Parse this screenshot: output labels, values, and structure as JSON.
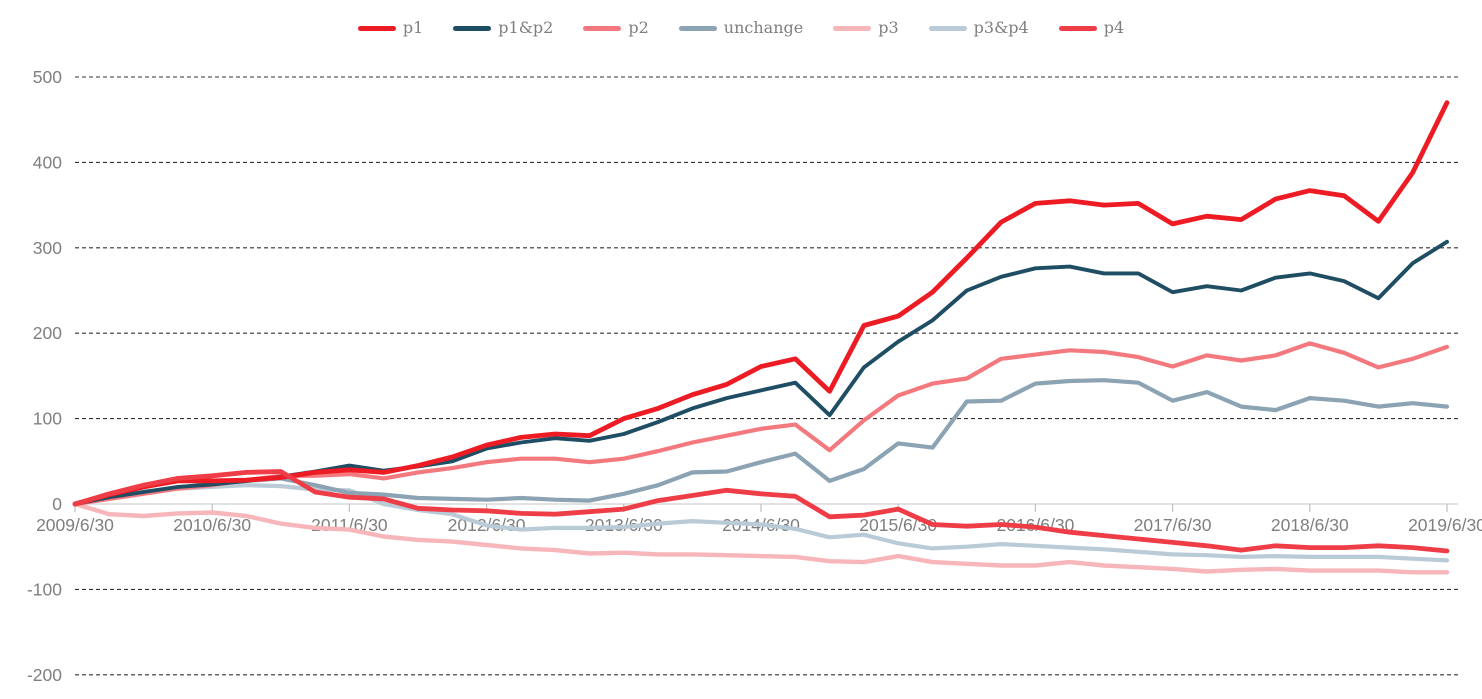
{
  "page": {
    "background": "#ffffff",
    "text_color": "#7f7f7f"
  },
  "legend": {
    "position": "top-center",
    "items": [
      "p1",
      "p1&p2",
      "p2",
      "unchange",
      "p3",
      "p3&p4",
      "p4"
    ]
  },
  "axis": {
    "y_tick_labels": [
      "500",
      "400",
      "300",
      "200",
      "100",
      "0",
      "-100",
      "-200"
    ],
    "x_tick_labels": [
      "2009/6/30",
      "2010/6/30",
      "2011/6/30",
      "2012/6/30",
      "2013/6/30",
      "2014/6/30",
      "2015/6/30",
      "2016/6/30",
      "2017/6/30",
      "2018/6/30",
      "2019/6/30"
    ]
  },
  "chart_data": {
    "type": "line",
    "title": "",
    "xlabel": "",
    "ylabel": "",
    "ylim": [
      -200,
      500
    ],
    "yticks": [
      500,
      400,
      300,
      200,
      100,
      0,
      -100,
      -200
    ],
    "grid": "horizontal-dashed",
    "grid_color": "#333333",
    "zero_line_color": "#d9d9d9",
    "tick_color": "#bfbfbf",
    "text_color": "#7f7f7f",
    "legend_position": "top-center",
    "x_axis_tick_labels": [
      "2009/6/30",
      "2010/6/30",
      "2011/6/30",
      "2012/6/30",
      "2013/6/30",
      "2014/6/30",
      "2015/6/30",
      "2016/6/30",
      "2017/6/30",
      "2018/6/30",
      "2019/6/30"
    ],
    "x": [
      "2009/6/30",
      "2009/9/30",
      "2009/12/31",
      "2010/3/31",
      "2010/6/30",
      "2010/9/30",
      "2010/12/31",
      "2011/3/31",
      "2011/6/30",
      "2011/9/30",
      "2011/12/31",
      "2012/3/31",
      "2012/6/30",
      "2012/9/30",
      "2012/12/31",
      "2013/3/31",
      "2013/6/30",
      "2013/9/30",
      "2013/12/31",
      "2014/3/31",
      "2014/6/30",
      "2014/9/30",
      "2014/12/31",
      "2015/3/31",
      "2015/6/30",
      "2015/9/30",
      "2015/12/31",
      "2016/3/31",
      "2016/6/30",
      "2016/9/30",
      "2016/12/31",
      "2017/3/31",
      "2017/6/30",
      "2017/9/30",
      "2017/12/31",
      "2018/3/31",
      "2018/6/30",
      "2018/9/30",
      "2018/12/31",
      "2019/3/31",
      "2019/6/30"
    ],
    "series": [
      {
        "name": "p1",
        "color": "#ed1b23",
        "stroke_width": 4.8,
        "values": [
          0,
          11,
          20,
          27,
          27,
          28,
          31,
          37,
          40,
          37,
          45,
          55,
          69,
          78,
          82,
          80,
          100,
          112,
          128,
          140,
          161,
          170,
          132,
          209,
          220,
          248,
          288,
          330,
          352,
          355,
          350,
          352,
          328,
          337,
          333,
          357,
          367,
          361,
          331,
          388,
          470
        ]
      },
      {
        "name": "p1&p2",
        "color": "#1f4e64",
        "stroke_width": 3.9,
        "values": [
          0,
          8,
          14,
          20,
          23,
          27,
          32,
          38,
          45,
          39,
          44,
          50,
          65,
          72,
          77,
          74,
          82,
          96,
          112,
          124,
          133,
          142,
          104,
          160,
          190,
          215,
          250,
          266,
          276,
          278,
          270,
          270,
          248,
          255,
          250,
          265,
          270,
          261,
          241,
          282,
          307
        ]
      },
      {
        "name": "p2",
        "color": "#f4797e",
        "stroke_width": 4.2,
        "values": [
          0,
          6,
          12,
          18,
          22,
          28,
          33,
          33,
          35,
          30,
          37,
          42,
          49,
          53,
          53,
          49,
          53,
          62,
          72,
          80,
          88,
          93,
          63,
          98,
          127,
          141,
          147,
          170,
          175,
          180,
          178,
          172,
          161,
          174,
          168,
          174,
          188,
          177,
          160,
          170,
          184
        ]
      },
      {
        "name": "unchange",
        "color": "#8ca3b4",
        "stroke_width": 4.2,
        "values": [
          0,
          8,
          13,
          19,
          24,
          27,
          30,
          22,
          13,
          11,
          7,
          6,
          5,
          7,
          5,
          4,
          12,
          22,
          37,
          38,
          49,
          59,
          27,
          41,
          71,
          66,
          120,
          121,
          141,
          144,
          145,
          142,
          121,
          131,
          114,
          110,
          124,
          121,
          114,
          118,
          114
        ]
      },
      {
        "name": "p3",
        "color": "#f7b6ba",
        "stroke_width": 4.4,
        "values": [
          0,
          -12,
          -14,
          -11,
          -10,
          -14,
          -23,
          -28,
          -30,
          -38,
          -42,
          -44,
          -48,
          -52,
          -54,
          -58,
          -57,
          -59,
          -59,
          -60,
          -61,
          -62,
          -67,
          -68,
          -61,
          -68,
          -70,
          -72,
          -72,
          -68,
          -72,
          -74,
          -76,
          -79,
          -77,
          -76,
          -78,
          -78,
          -78,
          -80,
          -80
        ]
      },
      {
        "name": "p3&p4",
        "color": "#bacbd8",
        "stroke_width": 4.2,
        "values": [
          0,
          7,
          15,
          18,
          20,
          22,
          21,
          17,
          16,
          0,
          -7,
          -12,
          -25,
          -30,
          -28,
          -28,
          -27,
          -23,
          -20,
          -22,
          -24,
          -29,
          -39,
          -36,
          -46,
          -52,
          -50,
          -47,
          -49,
          -51,
          -53,
          -56,
          -59,
          -60,
          -62,
          -61,
          -62,
          -62,
          -62,
          -64,
          -66
        ]
      },
      {
        "name": "p4",
        "color": "#ee3d46",
        "stroke_width": 4.8,
        "values": [
          0,
          12,
          22,
          30,
          33,
          37,
          38,
          14,
          8,
          6,
          -5,
          -7,
          -8,
          -11,
          -12,
          -9,
          -6,
          4,
          10,
          16,
          12,
          9,
          -15,
          -13,
          -6,
          -24,
          -26,
          -24,
          -27,
          -33,
          -37,
          -41,
          -45,
          -49,
          -54,
          -49,
          -51,
          -51,
          -49,
          -51,
          -55
        ]
      }
    ]
  }
}
